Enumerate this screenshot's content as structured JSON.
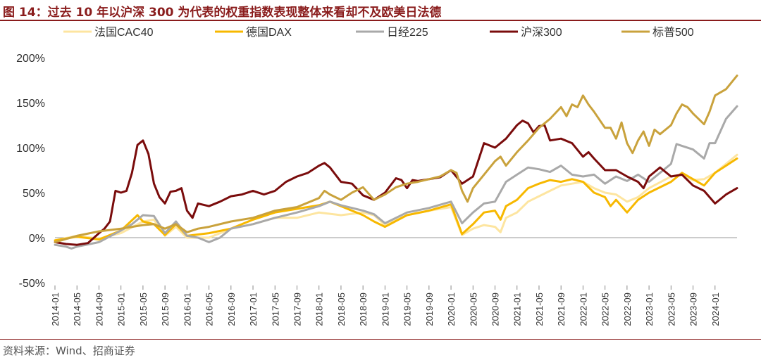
{
  "title": "图 14：过去 10 年以沪深 300 为代表的权重指数表现整体来看却不及欧美日法德",
  "source": "资料来源：Wind、招商证券",
  "chart_data": {
    "type": "line",
    "ylim": [
      -50,
      200
    ],
    "yticks": [
      -50,
      0,
      50,
      100,
      150,
      200
    ],
    "ytick_labels": [
      "-50%",
      "0%",
      "50%",
      "100%",
      "150%",
      "200%"
    ],
    "xtick_labels": [
      "2014-01",
      "2014-05",
      "2014-09",
      "2015-01",
      "2015-05",
      "2015-09",
      "2016-01",
      "2016-05",
      "2016-09",
      "2017-01",
      "2017-05",
      "2017-09",
      "2018-01",
      "2018-05",
      "2018-09",
      "2019-01",
      "2019-05",
      "2019-09",
      "2020-01",
      "2020-05",
      "2020-09",
      "2021-01",
      "2021-05",
      "2021-09",
      "2022-01",
      "2022-05",
      "2022-09",
      "2023-01",
      "2023-05",
      "2023-09",
      "2024-01"
    ],
    "xtick_months": [
      0,
      4,
      8,
      12,
      16,
      20,
      24,
      28,
      32,
      36,
      40,
      44,
      48,
      52,
      56,
      60,
      64,
      68,
      72,
      76,
      80,
      84,
      88,
      92,
      96,
      100,
      104,
      108,
      112,
      116,
      120
    ],
    "x_months": [
      0,
      124
    ],
    "legend_position": "top",
    "series": [
      {
        "name": "法国CAC40",
        "color": "#fde5a0",
        "points": [
          [
            0,
            -3
          ],
          [
            4,
            2
          ],
          [
            8,
            -1
          ],
          [
            12,
            5
          ],
          [
            16,
            18
          ],
          [
            18,
            20
          ],
          [
            20,
            2
          ],
          [
            22,
            12
          ],
          [
            24,
            0
          ],
          [
            28,
            0
          ],
          [
            32,
            10
          ],
          [
            36,
            15
          ],
          [
            40,
            22
          ],
          [
            44,
            22
          ],
          [
            48,
            28
          ],
          [
            52,
            25
          ],
          [
            56,
            28
          ],
          [
            58,
            25
          ],
          [
            60,
            14
          ],
          [
            64,
            25
          ],
          [
            68,
            30
          ],
          [
            72,
            34
          ],
          [
            74,
            3
          ],
          [
            76,
            10
          ],
          [
            78,
            14
          ],
          [
            80,
            12
          ],
          [
            81,
            6
          ],
          [
            82,
            22
          ],
          [
            84,
            28
          ],
          [
            86,
            40
          ],
          [
            88,
            46
          ],
          [
            90,
            52
          ],
          [
            92,
            58
          ],
          [
            94,
            60
          ],
          [
            96,
            62
          ],
          [
            98,
            55
          ],
          [
            100,
            50
          ],
          [
            102,
            48
          ],
          [
            104,
            40
          ],
          [
            106,
            45
          ],
          [
            108,
            55
          ],
          [
            112,
            68
          ],
          [
            114,
            70
          ],
          [
            116,
            64
          ],
          [
            118,
            65
          ],
          [
            120,
            72
          ],
          [
            122,
            82
          ],
          [
            124,
            92
          ]
        ]
      },
      {
        "name": "德国DAX",
        "color": "#f7b800",
        "points": [
          [
            0,
            -3
          ],
          [
            4,
            1
          ],
          [
            8,
            -2
          ],
          [
            12,
            8
          ],
          [
            15,
            25
          ],
          [
            16,
            18
          ],
          [
            18,
            15
          ],
          [
            20,
            3
          ],
          [
            22,
            15
          ],
          [
            24,
            2
          ],
          [
            28,
            5
          ],
          [
            32,
            10
          ],
          [
            36,
            20
          ],
          [
            40,
            28
          ],
          [
            44,
            32
          ],
          [
            48,
            36
          ],
          [
            50,
            40
          ],
          [
            52,
            35
          ],
          [
            56,
            25
          ],
          [
            58,
            18
          ],
          [
            60,
            12
          ],
          [
            64,
            25
          ],
          [
            68,
            30
          ],
          [
            72,
            37
          ],
          [
            74,
            4
          ],
          [
            76,
            15
          ],
          [
            78,
            28
          ],
          [
            80,
            30
          ],
          [
            81,
            20
          ],
          [
            82,
            35
          ],
          [
            84,
            42
          ],
          [
            86,
            55
          ],
          [
            88,
            60
          ],
          [
            90,
            64
          ],
          [
            92,
            62
          ],
          [
            94,
            65
          ],
          [
            96,
            62
          ],
          [
            98,
            50
          ],
          [
            100,
            45
          ],
          [
            101,
            35
          ],
          [
            102,
            42
          ],
          [
            104,
            28
          ],
          [
            106,
            42
          ],
          [
            108,
            50
          ],
          [
            112,
            62
          ],
          [
            114,
            72
          ],
          [
            116,
            65
          ],
          [
            118,
            58
          ],
          [
            120,
            72
          ],
          [
            122,
            80
          ],
          [
            124,
            88
          ]
        ]
      },
      {
        "name": "日经225",
        "color": "#a9a9a9",
        "points": [
          [
            0,
            -8
          ],
          [
            2,
            -10
          ],
          [
            3,
            -12
          ],
          [
            4,
            -10
          ],
          [
            8,
            -5
          ],
          [
            12,
            8
          ],
          [
            14,
            15
          ],
          [
            16,
            25
          ],
          [
            18,
            24
          ],
          [
            20,
            5
          ],
          [
            22,
            18
          ],
          [
            24,
            2
          ],
          [
            26,
            0
          ],
          [
            28,
            -5
          ],
          [
            30,
            0
          ],
          [
            32,
            10
          ],
          [
            36,
            15
          ],
          [
            40,
            22
          ],
          [
            44,
            28
          ],
          [
            48,
            35
          ],
          [
            50,
            40
          ],
          [
            52,
            36
          ],
          [
            56,
            30
          ],
          [
            58,
            26
          ],
          [
            60,
            16
          ],
          [
            64,
            28
          ],
          [
            68,
            33
          ],
          [
            72,
            40
          ],
          [
            74,
            16
          ],
          [
            76,
            28
          ],
          [
            78,
            38
          ],
          [
            80,
            40
          ],
          [
            82,
            62
          ],
          [
            84,
            70
          ],
          [
            86,
            78
          ],
          [
            88,
            76
          ],
          [
            90,
            73
          ],
          [
            92,
            80
          ],
          [
            94,
            70
          ],
          [
            96,
            68
          ],
          [
            98,
            70
          ],
          [
            100,
            60
          ],
          [
            102,
            68
          ],
          [
            104,
            63
          ],
          [
            106,
            70
          ],
          [
            108,
            62
          ],
          [
            110,
            72
          ],
          [
            112,
            82
          ],
          [
            113,
            104
          ],
          [
            116,
            98
          ],
          [
            118,
            88
          ],
          [
            119,
            105
          ],
          [
            120,
            105
          ],
          [
            122,
            132
          ],
          [
            124,
            146
          ]
        ]
      },
      {
        "name": "沪深300",
        "color": "#7a0c0c",
        "points": [
          [
            0,
            -5
          ],
          [
            2,
            -7
          ],
          [
            4,
            -8
          ],
          [
            6,
            -6
          ],
          [
            8,
            5
          ],
          [
            9,
            10
          ],
          [
            10,
            18
          ],
          [
            11,
            52
          ],
          [
            12,
            50
          ],
          [
            13,
            52
          ],
          [
            14,
            72
          ],
          [
            15,
            103
          ],
          [
            16,
            108
          ],
          [
            17,
            93
          ],
          [
            18,
            60
          ],
          [
            19,
            45
          ],
          [
            20,
            38
          ],
          [
            21,
            51
          ],
          [
            22,
            52
          ],
          [
            23,
            55
          ],
          [
            24,
            30
          ],
          [
            25,
            22
          ],
          [
            26,
            38
          ],
          [
            28,
            35
          ],
          [
            30,
            40
          ],
          [
            32,
            46
          ],
          [
            34,
            48
          ],
          [
            36,
            52
          ],
          [
            38,
            48
          ],
          [
            40,
            52
          ],
          [
            42,
            62
          ],
          [
            44,
            68
          ],
          [
            46,
            72
          ],
          [
            48,
            80
          ],
          [
            49,
            83
          ],
          [
            50,
            78
          ],
          [
            52,
            62
          ],
          [
            54,
            60
          ],
          [
            56,
            47
          ],
          [
            58,
            42
          ],
          [
            60,
            50
          ],
          [
            62,
            66
          ],
          [
            63,
            64
          ],
          [
            64,
            55
          ],
          [
            65,
            64
          ],
          [
            66,
            63
          ],
          [
            68,
            65
          ],
          [
            70,
            67
          ],
          [
            72,
            75
          ],
          [
            74,
            60
          ],
          [
            76,
            68
          ],
          [
            78,
            105
          ],
          [
            80,
            100
          ],
          [
            82,
            110
          ],
          [
            84,
            125
          ],
          [
            85,
            130
          ],
          [
            86,
            127
          ],
          [
            87,
            117
          ],
          [
            88,
            124
          ],
          [
            89,
            125
          ],
          [
            90,
            108
          ],
          [
            92,
            110
          ],
          [
            94,
            105
          ],
          [
            96,
            90
          ],
          [
            97,
            95
          ],
          [
            98,
            88
          ],
          [
            100,
            75
          ],
          [
            102,
            75
          ],
          [
            104,
            68
          ],
          [
            106,
            62
          ],
          [
            107,
            55
          ],
          [
            108,
            68
          ],
          [
            110,
            78
          ],
          [
            112,
            68
          ],
          [
            114,
            70
          ],
          [
            116,
            58
          ],
          [
            118,
            52
          ],
          [
            119,
            45
          ],
          [
            120,
            38
          ],
          [
            122,
            48
          ],
          [
            124,
            55
          ]
        ]
      },
      {
        "name": "标普500",
        "color": "#c9a23c",
        "points": [
          [
            0,
            -5
          ],
          [
            4,
            2
          ],
          [
            8,
            7
          ],
          [
            12,
            10
          ],
          [
            16,
            14
          ],
          [
            18,
            15
          ],
          [
            20,
            10
          ],
          [
            22,
            15
          ],
          [
            24,
            6
          ],
          [
            26,
            10
          ],
          [
            28,
            12
          ],
          [
            32,
            18
          ],
          [
            36,
            22
          ],
          [
            40,
            30
          ],
          [
            44,
            34
          ],
          [
            48,
            44
          ],
          [
            49,
            52
          ],
          [
            50,
            48
          ],
          [
            52,
            42
          ],
          [
            54,
            50
          ],
          [
            56,
            56
          ],
          [
            58,
            42
          ],
          [
            60,
            48
          ],
          [
            62,
            56
          ],
          [
            64,
            60
          ],
          [
            66,
            62
          ],
          [
            68,
            65
          ],
          [
            70,
            68
          ],
          [
            72,
            75
          ],
          [
            73,
            72
          ],
          [
            74,
            52
          ],
          [
            75,
            40
          ],
          [
            76,
            55
          ],
          [
            78,
            70
          ],
          [
            80,
            85
          ],
          [
            81,
            90
          ],
          [
            82,
            80
          ],
          [
            84,
            95
          ],
          [
            86,
            108
          ],
          [
            88,
            122
          ],
          [
            90,
            132
          ],
          [
            92,
            145
          ],
          [
            93,
            135
          ],
          [
            94,
            148
          ],
          [
            95,
            145
          ],
          [
            96,
            158
          ],
          [
            97,
            148
          ],
          [
            98,
            140
          ],
          [
            100,
            122
          ],
          [
            101,
            122
          ],
          [
            102,
            110
          ],
          [
            103,
            128
          ],
          [
            104,
            105
          ],
          [
            105,
            94
          ],
          [
            106,
            108
          ],
          [
            107,
            118
          ],
          [
            108,
            102
          ],
          [
            109,
            120
          ],
          [
            110,
            115
          ],
          [
            112,
            125
          ],
          [
            113,
            138
          ],
          [
            114,
            148
          ],
          [
            115,
            145
          ],
          [
            116,
            138
          ],
          [
            118,
            126
          ],
          [
            119,
            140
          ],
          [
            120,
            158
          ],
          [
            122,
            165
          ],
          [
            124,
            180
          ]
        ]
      }
    ]
  }
}
